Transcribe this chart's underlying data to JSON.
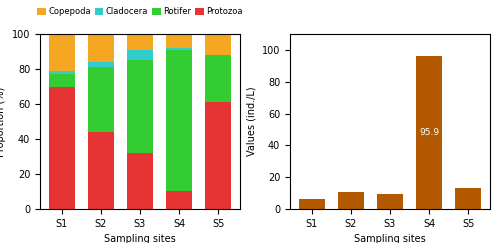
{
  "sites": [
    "S1",
    "S2",
    "S3",
    "S4",
    "S5"
  ],
  "stacked": {
    "Protozoa": [
      70,
      44,
      32,
      10,
      61
    ],
    "Rotifer": [
      7,
      37,
      53,
      81,
      27
    ],
    "Cladocera": [
      2,
      3,
      6,
      1,
      0
    ],
    "Copepoda": [
      21,
      16,
      9,
      8,
      12
    ]
  },
  "stack_colors": {
    "Protozoa": "#e63333",
    "Rotifer": "#33cc33",
    "Cladocera": "#33cccc",
    "Copepoda": "#f5a623"
  },
  "stack_order": [
    "Protozoa",
    "Rotifer",
    "Cladocera",
    "Copepoda"
  ],
  "bar_values": [
    6.3,
    10.6,
    9.7,
    95.9,
    13.0
  ],
  "bar_color": "#b35900",
  "ylabel_left": "Proportion (%)",
  "ylabel_right": "Values (ind./L)",
  "xlabel": "Sampling sites",
  "ylim_left": [
    0,
    100
  ],
  "ylim_right": [
    0,
    110
  ],
  "yticks_left": [
    0,
    20,
    40,
    60,
    80,
    100
  ],
  "yticks_right": [
    0,
    20,
    40,
    60,
    80,
    100
  ],
  "legend_labels": [
    "Copepoda",
    "Cladocera",
    "Rotifer",
    "Protozoa"
  ],
  "legend_colors": [
    "#f5a623",
    "#33cccc",
    "#33cc33",
    "#e63333"
  ],
  "bg_color": "#ffffff"
}
